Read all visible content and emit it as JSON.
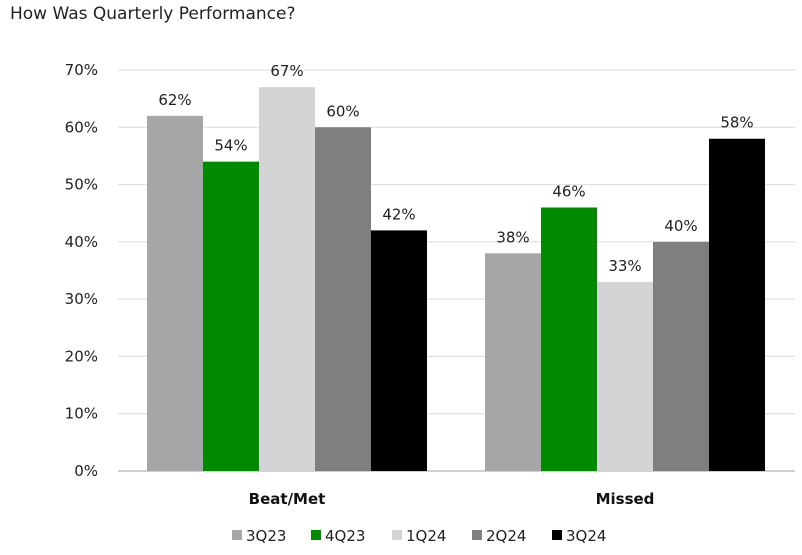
{
  "chart_data": {
    "type": "bar",
    "title": "How Was Quarterly Performance?",
    "categories": [
      "Beat/Met",
      "Missed"
    ],
    "series": [
      {
        "name": "3Q23",
        "values": [
          62,
          38
        ],
        "labels": [
          "62%",
          "38%"
        ],
        "color": "#a6a6a8"
      },
      {
        "name": "4Q23",
        "values": [
          54,
          46
        ],
        "labels": [
          "54%",
          "46%"
        ],
        "color": "#008a00"
      },
      {
        "name": "1Q24",
        "values": [
          67,
          33
        ],
        "labels": [
          "67%",
          "33%"
        ],
        "color": "#d4d4d6"
      },
      {
        "name": "2Q24",
        "values": [
          60,
          40
        ],
        "labels": [
          "60%",
          "40%"
        ],
        "color": "#7f7f7f"
      },
      {
        "name": "3Q24",
        "values": [
          42,
          58
        ],
        "labels": [
          "42%",
          "58%"
        ],
        "color": "#000000"
      }
    ],
    "ylim": [
      0,
      70
    ],
    "yticks": [
      0,
      10,
      20,
      30,
      40,
      50,
      60,
      70
    ],
    "ytick_labels": [
      "0%",
      "10%",
      "20%",
      "30%",
      "40%",
      "50%",
      "60%",
      "70%"
    ],
    "grid": true,
    "legend_position": "bottom"
  }
}
